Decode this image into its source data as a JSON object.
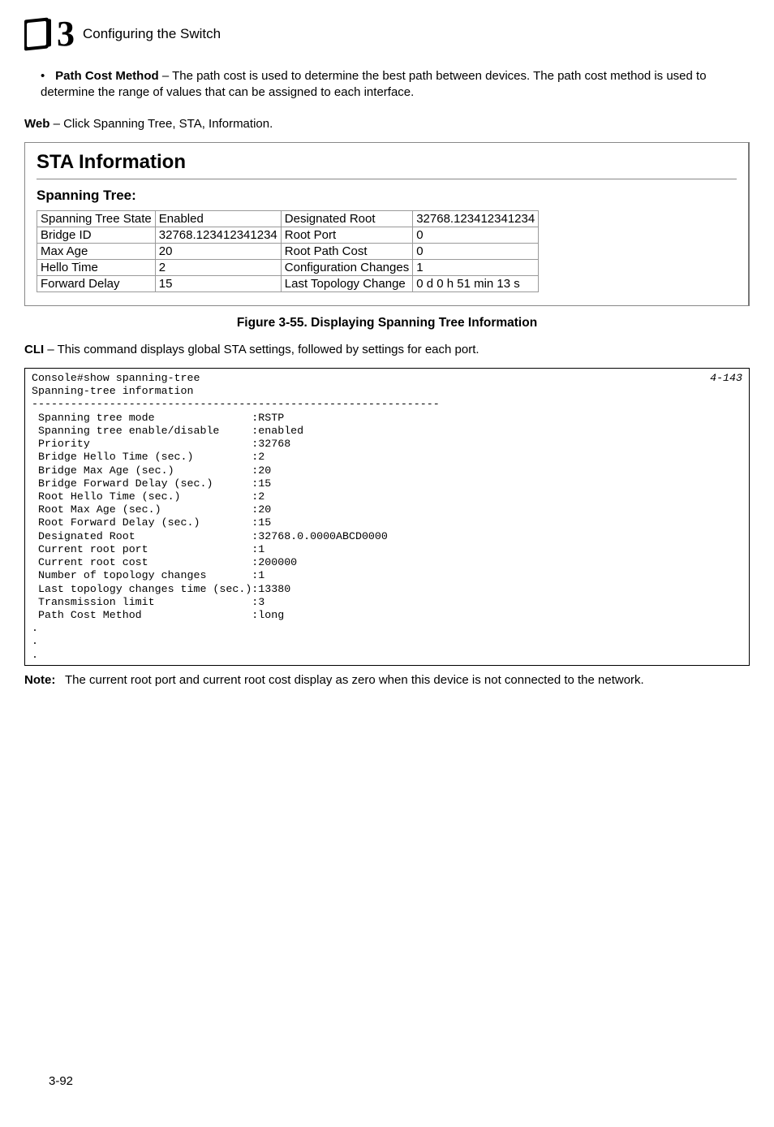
{
  "header": {
    "chapter_number": "3",
    "title": "Configuring the Switch"
  },
  "bullet": {
    "term": "Path Cost Method",
    "text": " – The path cost is used to determine the best path between devices. The path cost method is used to determine the range of values that can be assigned to each interface."
  },
  "web_line": {
    "label": "Web",
    "text": " – Click Spanning Tree, STA, Information."
  },
  "panel": {
    "title": "STA Information",
    "subtitle": "Spanning Tree:",
    "rows": [
      [
        "Spanning Tree State",
        "Enabled",
        "Designated Root",
        "32768.123412341234"
      ],
      [
        "Bridge ID",
        "32768.123412341234",
        "Root Port",
        "0"
      ],
      [
        "Max Age",
        "20",
        "Root Path Cost",
        "0"
      ],
      [
        "Hello Time",
        "2",
        "Configuration Changes",
        "1"
      ],
      [
        "Forward Delay",
        "15",
        "Last Topology Change",
        "0 d 0 h 51 min 13 s"
      ]
    ]
  },
  "figure_caption": "Figure 3-55.  Displaying Spanning Tree Information",
  "cli_intro": {
    "label": "CLI",
    "text": " – This command displays global STA settings, followed by settings for each port."
  },
  "cli": {
    "ref": "4-143",
    "body": "Console#show spanning-tree\nSpanning-tree information\n---------------------------------------------------------------\n Spanning tree mode               :RSTP\n Spanning tree enable/disable     :enabled\n Priority                         :32768\n Bridge Hello Time (sec.)         :2\n Bridge Max Age (sec.)            :20\n Bridge Forward Delay (sec.)      :15\n Root Hello Time (sec.)           :2\n Root Max Age (sec.)              :20\n Root Forward Delay (sec.)        :15\n Designated Root                  :32768.0.0000ABCD0000\n Current root port                :1\n Current root cost                :200000\n Number of topology changes       :1\n Last topology changes time (sec.):13380\n Transmission limit               :3\n Path Cost Method                 :long\n.\n.\n."
  },
  "note": {
    "label": "Note:",
    "text": "The current root port and current root cost display as zero when this device is not connected to the network."
  },
  "page_number": "3-92"
}
